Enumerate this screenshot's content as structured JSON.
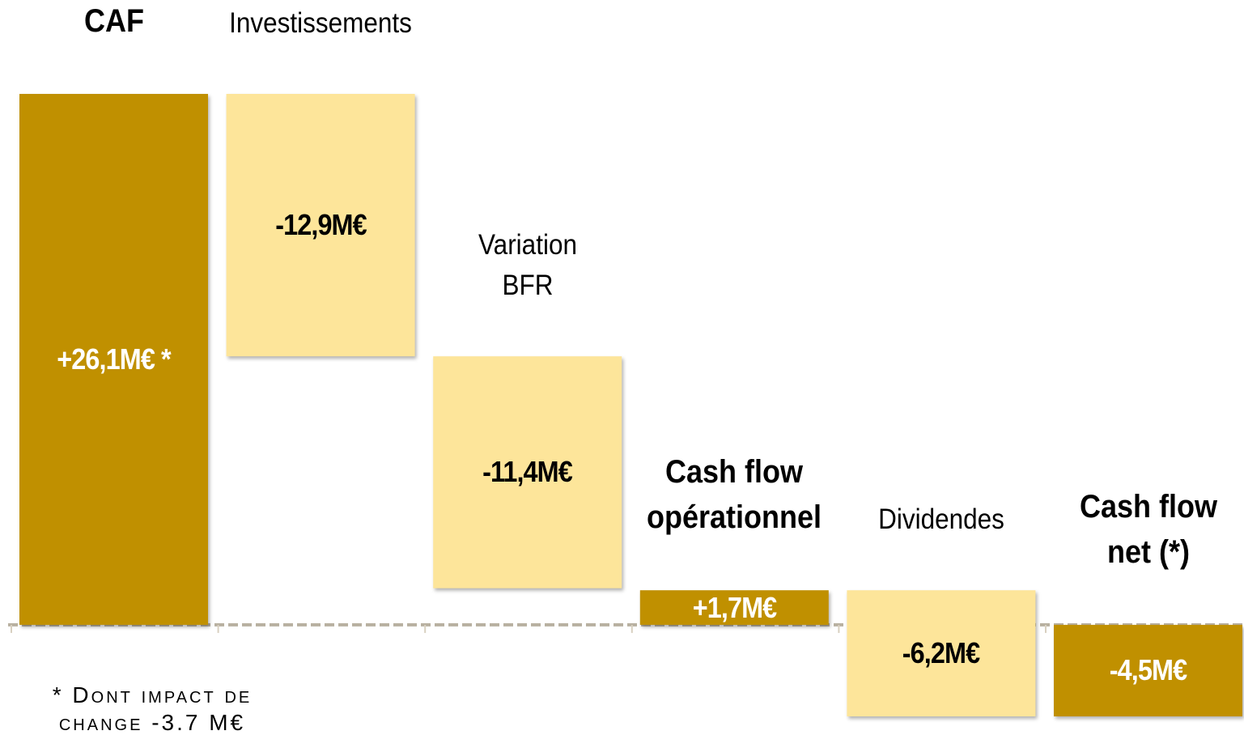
{
  "chart_data": {
    "type": "waterfall",
    "categories": [
      "CAF",
      "Investissements",
      "Variation BFR",
      "Cash flow opérationnel",
      "Dividendes",
      "Cash flow net (*)"
    ],
    "values": [
      26.1,
      -12.9,
      -11.4,
      1.7,
      -6.2,
      -4.5
    ],
    "value_labels": [
      "+26,1M€ *",
      "-12,9M€",
      "-11,4M€",
      "+1,7M€",
      "-6,2M€",
      "-4,5M€"
    ],
    "measure": [
      "total",
      "relative",
      "relative",
      "total",
      "relative",
      "total"
    ],
    "total_color": "#c09000",
    "relative_color": "#fde59a",
    "footnote": "* Dont impact de change -3.7 M€"
  }
}
